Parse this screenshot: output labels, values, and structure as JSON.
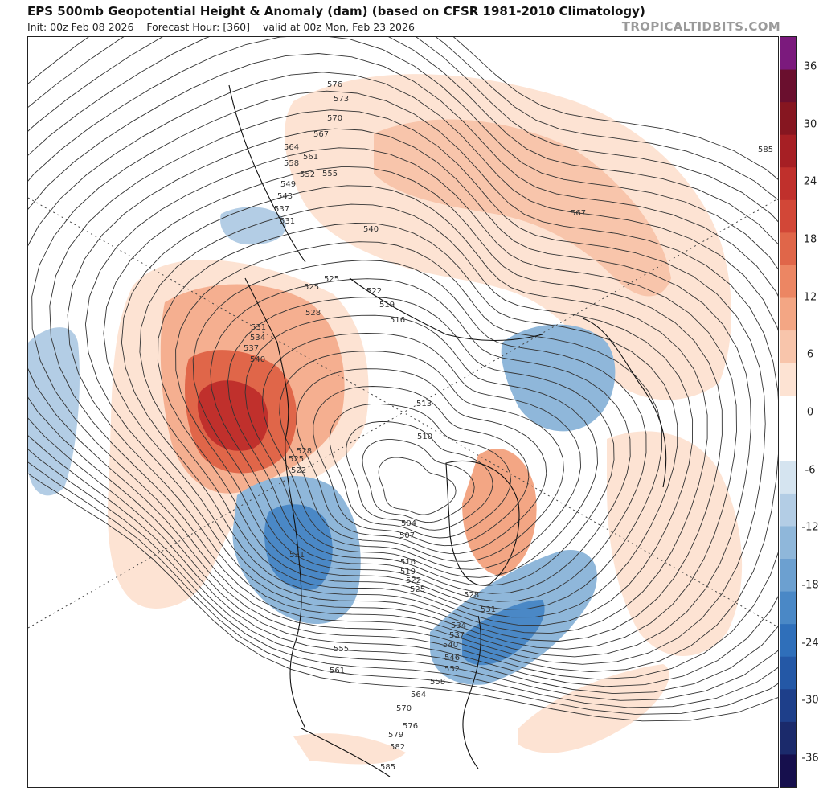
{
  "header": {
    "title": "EPS 500mb Geopotential Height & Anomaly (dam) (based on CFSR 1981-2010 Climatology)",
    "init": "Init: 00z Feb 08 2026",
    "forecast_hour": "Forecast Hour: [360]",
    "valid": "valid at 00z Mon, Feb 23 2026",
    "credit": "TROPICALTIDBITS.COM"
  },
  "colorbar": {
    "ticks": [
      "36",
      "30",
      "24",
      "18",
      "12",
      "6",
      "0",
      "-6",
      "-12",
      "-18",
      "-24",
      "-30",
      "-36"
    ],
    "colors": [
      "#160f4d",
      "#1b2a6b",
      "#1e3f8a",
      "#2458a6",
      "#2f6fba",
      "#4a88c6",
      "#6ca0d0",
      "#8fb7da",
      "#b3cde5",
      "#d5e4f0",
      "#ffffff",
      "#ffffff",
      "#fde3d3",
      "#f8c5ab",
      "#f3a684",
      "#ec8663",
      "#e06649",
      "#d24737",
      "#c0302c",
      "#a61f24",
      "#861620",
      "#6a0f2e",
      "#7b1a7d"
    ]
  },
  "map": {
    "contour_labels": [
      "576",
      "573",
      "570",
      "567",
      "564",
      "561",
      "558",
      "555",
      "552",
      "549",
      "546",
      "543",
      "540",
      "537",
      "534",
      "531",
      "528",
      "525",
      "522",
      "519",
      "516",
      "513",
      "510",
      "507",
      "504",
      "585",
      "582",
      "579"
    ],
    "anomaly_features": [
      {
        "label": "positive-anomaly-north-pacific",
        "value": 30
      },
      {
        "label": "positive-anomaly-eurasia",
        "value": 18
      },
      {
        "label": "negative-anomaly-western-north-america",
        "value": -18
      },
      {
        "label": "negative-anomaly-eastern-north-america",
        "value": -18
      },
      {
        "label": "negative-anomaly-siberia",
        "value": -12
      },
      {
        "label": "positive-anomaly-greenland",
        "value": 12
      },
      {
        "label": "positive-anomaly-north-atlantic",
        "value": 6
      },
      {
        "label": "negative-anomaly-western-pacific",
        "value": -6
      }
    ]
  }
}
